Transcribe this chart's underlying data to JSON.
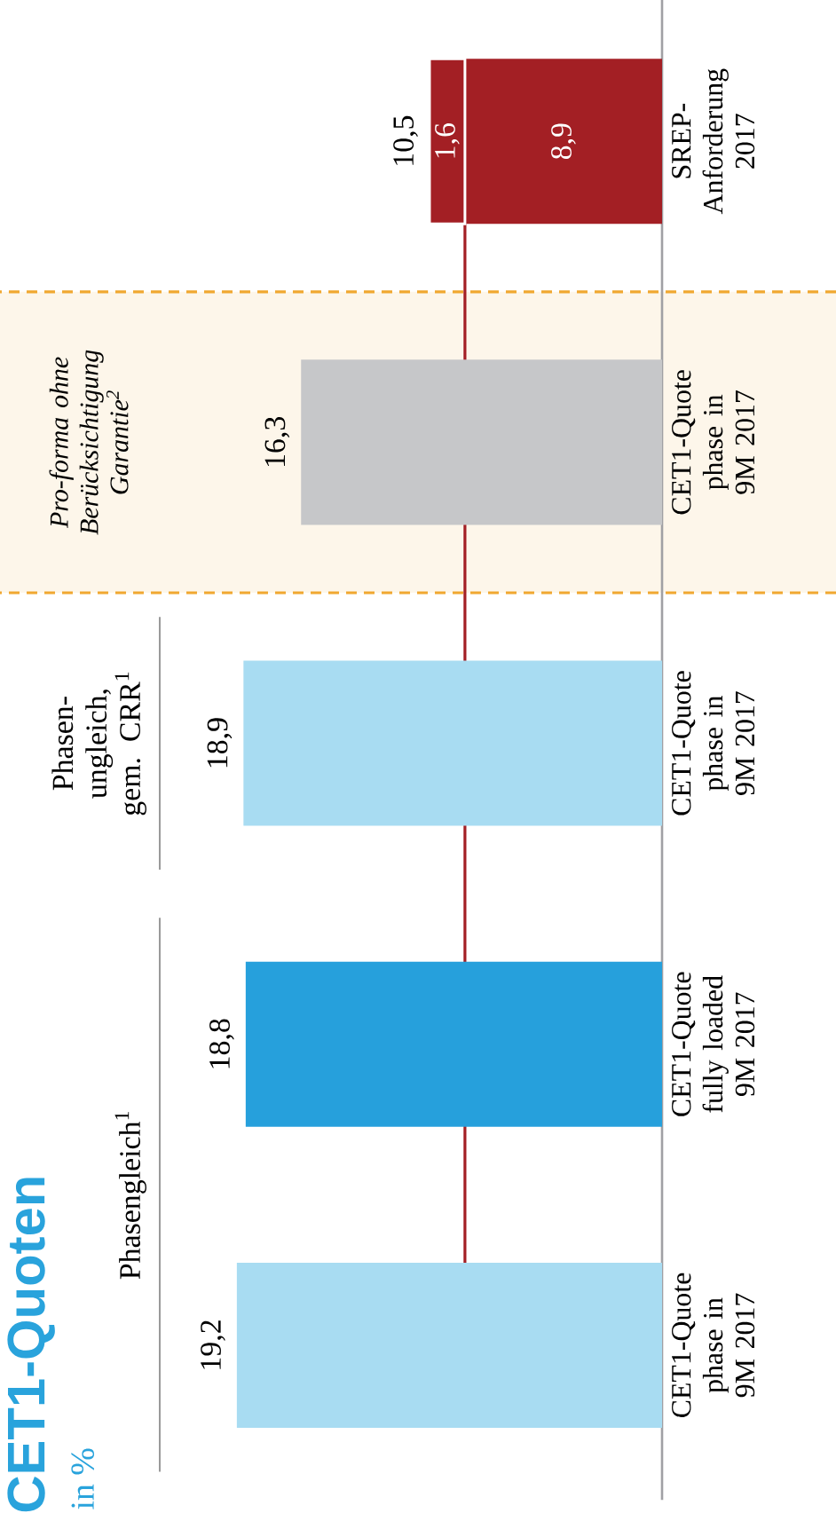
{
  "chart_data": {
    "type": "bar",
    "orientation": "horizontal",
    "title": "CET1-Quoten",
    "subtitle": "in %",
    "categories": [
      "SREP-Anforderung 2017",
      "CET1-Quote phase in 9M 2017",
      "CET1-Quote phase in 9M 2017",
      "CET1-Quote fully loaded 9M 2017",
      "CET1-Quote phase in 9M 2017"
    ],
    "stacked": true,
    "series": [
      {
        "colors": [
          "#a31f24",
          "#c6c7c9",
          "#a8dcf2",
          "#26a0dc",
          "#a8dcf2"
        ],
        "values": [
          8.9,
          16.3,
          18.9,
          18.8,
          19.2
        ],
        "value_labels": [
          "8,9",
          "16,3",
          "18,9",
          "18,8",
          "19,2"
        ]
      },
      {
        "color": "#a31f24",
        "values": [
          1.6,
          null,
          null,
          null,
          null
        ],
        "value_labels": [
          "1,6",
          null,
          null,
          null,
          null
        ]
      }
    ],
    "totals": [
      "10,5",
      null,
      null,
      null,
      null
    ],
    "annotations": [
      "Phasengleich$^{1}$",
      "Phasen-ungleich, gem. CRR$^{1}$",
      "Pro-forma ohne Berücksichtigung Garantie$^{2}$"
    ],
    "ref_lines": [
      {
        "axis": "x",
        "value": 8.9,
        "color": "#a31f24"
      }
    ],
    "tick_labels": "y"
  }
}
